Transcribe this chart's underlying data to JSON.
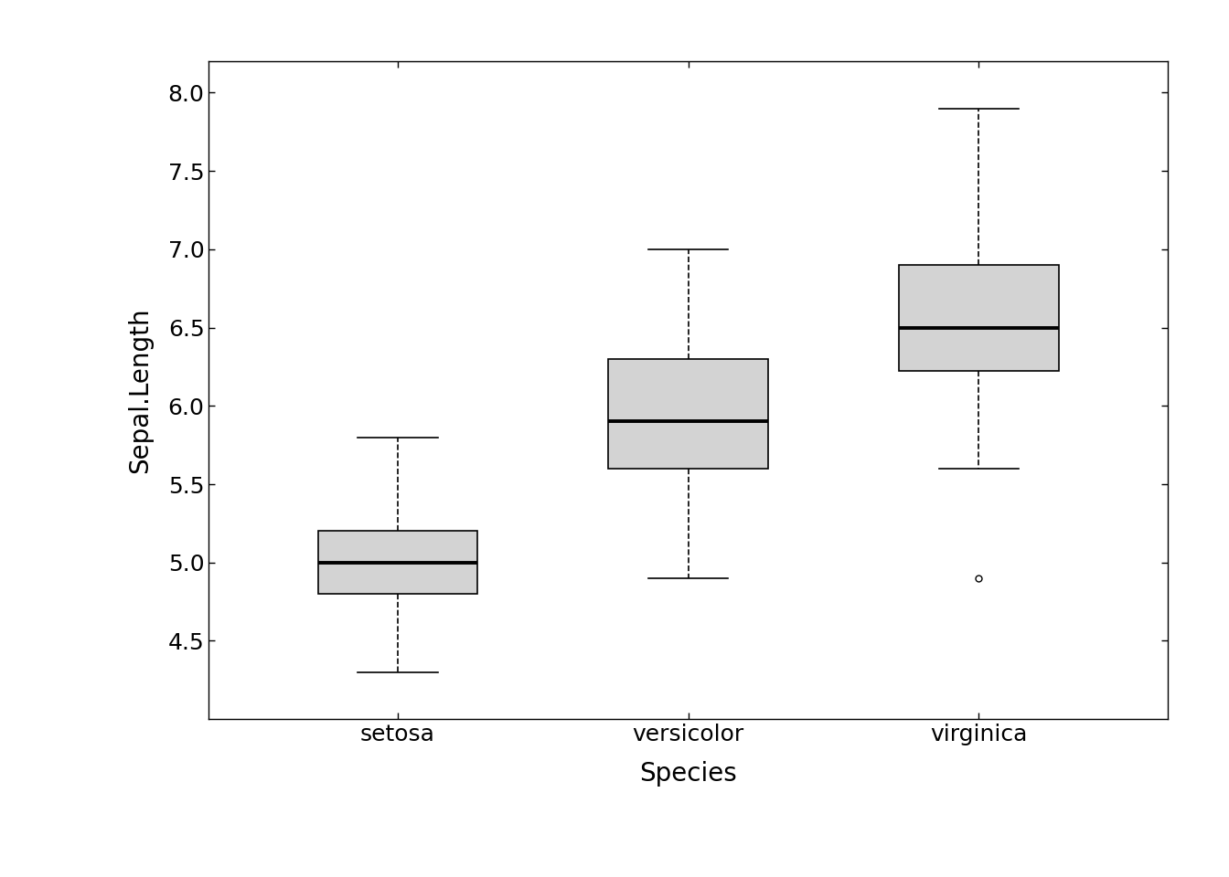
{
  "species": [
    "setosa",
    "versicolor",
    "virginica"
  ],
  "xlabel": "Species",
  "ylabel": "Sepal.Length",
  "ylim": [
    4.0,
    8.2
  ],
  "yticks": [
    4.5,
    5.0,
    5.5,
    6.0,
    6.5,
    7.0,
    7.5,
    8.0
  ],
  "box_color": "#d3d3d3",
  "median_color": "#000000",
  "whisker_color": "#000000",
  "box_stats": {
    "setosa": {
      "q1": 4.8,
      "median": 5.0,
      "q3": 5.2,
      "whislo": 4.3,
      "whishi": 5.8,
      "fliers": []
    },
    "versicolor": {
      "q1": 5.6,
      "median": 5.9,
      "q3": 6.3,
      "whislo": 4.9,
      "whishi": 7.0,
      "fliers": []
    },
    "virginica": {
      "q1": 6.225,
      "median": 6.5,
      "q3": 6.9,
      "whislo": 5.6,
      "whishi": 7.9,
      "fliers": [
        4.9
      ]
    }
  },
  "background_color": "#ffffff",
  "label_fontsize": 20,
  "tick_fontsize": 18,
  "box_width": 0.55
}
